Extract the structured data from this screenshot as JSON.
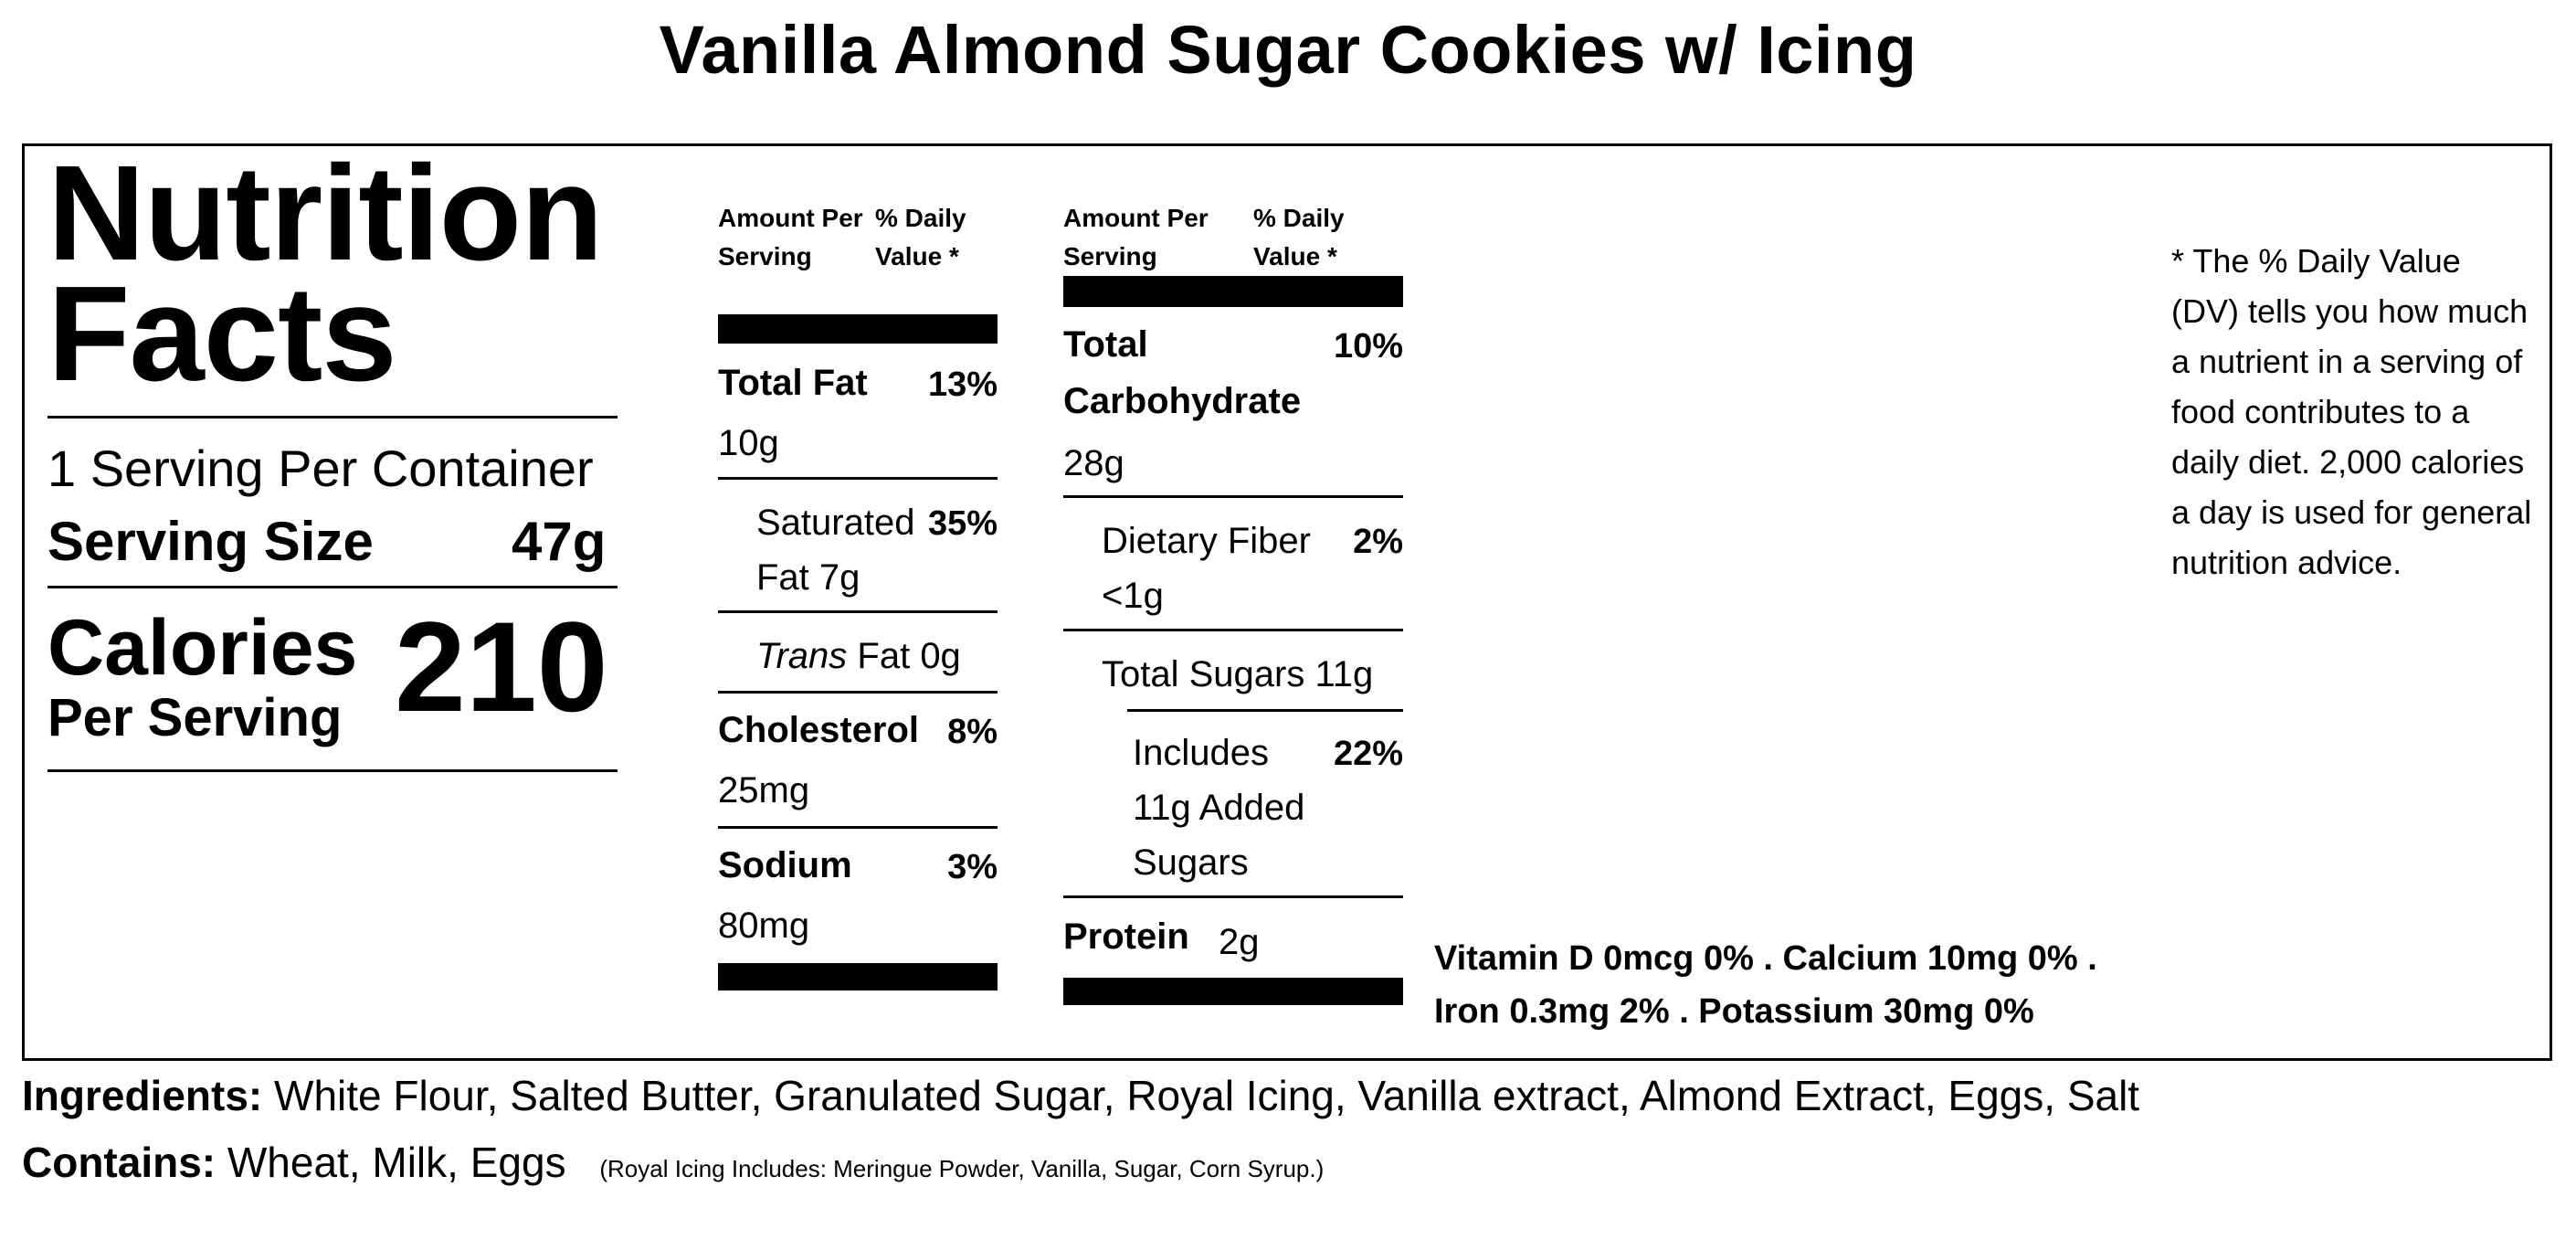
{
  "title": "Vanilla Almond Sugar Cookies w/ Icing",
  "nutrition": {
    "heading": "Nutrition Facts",
    "servings_per_container": "1 Serving Per Container",
    "serving_size_label": "Serving Size",
    "serving_size_value": "47g",
    "calories_label": "Calories",
    "calories_sub": "Per Serving",
    "calories_value": "210"
  },
  "column_headers": {
    "amount_per_serving": "Amount Per Serving",
    "daily_value": "% Daily Value *"
  },
  "column1": {
    "total_fat": {
      "name": "Total Fat",
      "amount": "10g",
      "pct": "13%"
    },
    "saturated_fat": {
      "name": "Saturated Fat 7g",
      "pct": "35%"
    },
    "trans_fat": {
      "name_italic": "Trans",
      "rest": "Fat 0g"
    },
    "cholesterol": {
      "name": "Cholesterol",
      "amount": "25mg",
      "pct": "8%"
    },
    "sodium": {
      "name": "Sodium",
      "amount": "80mg",
      "pct": "3%"
    }
  },
  "column2": {
    "total_carbohydrate": {
      "name": "Total Carbohydrate",
      "amount": "28g",
      "pct": "10%"
    },
    "dietary_fiber": {
      "name": "Dietary Fiber <1g",
      "pct": "2%"
    },
    "total_sugars": {
      "name": "Total Sugars 11g"
    },
    "added_sugars": {
      "name": "Includes 11g Added Sugars",
      "pct": "22%"
    },
    "protein": {
      "name": "Protein",
      "amount": "2g"
    }
  },
  "vitamins": "Vitamin D 0mcg 0% . Calcium 10mg 0% . Iron 0.3mg 2% . Potassium 30mg 0%",
  "footnote": "* The % Daily Value (DV) tells you how much a nutrient in a serving of food contributes to a daily diet. 2,000 calories a day is used for general nutrition advice.",
  "ingredients": {
    "label": "Ingredients:",
    "text": "White Flour, Salted Butter, Granulated Sugar, Royal Icing, Vanilla extract, Almond Extract, Eggs, Salt"
  },
  "contains": {
    "label": "Contains:",
    "text": "Wheat, Milk, Eggs",
    "note": "(Royal Icing Includes: Meringue Powder, Vanilla, Sugar, Corn Syrup.)"
  }
}
